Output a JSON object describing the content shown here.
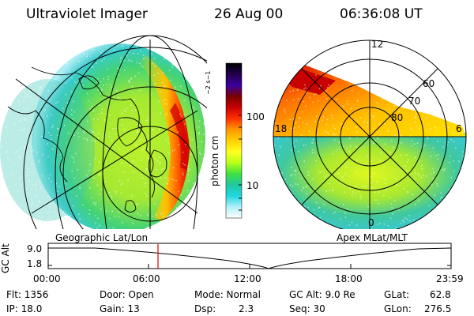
{
  "header": {
    "title": "Ultraviolet Imager",
    "date": "26 Aug 00",
    "time": "06:36:08 UT"
  },
  "colorbar": {
    "unit_label": "photon cm",
    "tick_high": "100",
    "tick_low": "10",
    "stops": [
      "#000000",
      "#22004a",
      "#3a00a0",
      "#7a0000",
      "#c80000",
      "#ff3000",
      "#ff9800",
      "#ffd000",
      "#ffff20",
      "#b8ff18",
      "#40e040",
      "#20c8a0",
      "#20d8e0",
      "#b0f0f8",
      "#ffffff"
    ]
  },
  "panels": {
    "left_caption": "Geographic Lat/Lon",
    "right_caption": "Apex MLat/MLT",
    "mlt_labels": [
      "12",
      "18",
      "6",
      "0"
    ],
    "mlat_labels": [
      "60",
      "70",
      "80"
    ]
  },
  "altitude_plot": {
    "ylabel": "GC Alt",
    "yticks": [
      "9.0",
      "1.8"
    ],
    "xticks": [
      "00:00",
      "06:00",
      "12:00",
      "18:00",
      "23:59"
    ],
    "marker_time": "06:36"
  },
  "status": {
    "flt": "Flt: 1356",
    "ip": "IP: 18.0",
    "door": "Door: Open",
    "gain": "Gain: 13",
    "mode": "Mode: Normal",
    "dsp_label": "Dsp:",
    "dsp_value": "2.3",
    "gc_alt": "GC Alt: 9.0 Re",
    "seq": "Seq: 30",
    "glat_label": "GLat:",
    "glat_value": "62.8",
    "glon_label": "GLon:",
    "glon_value": "276.5"
  }
}
